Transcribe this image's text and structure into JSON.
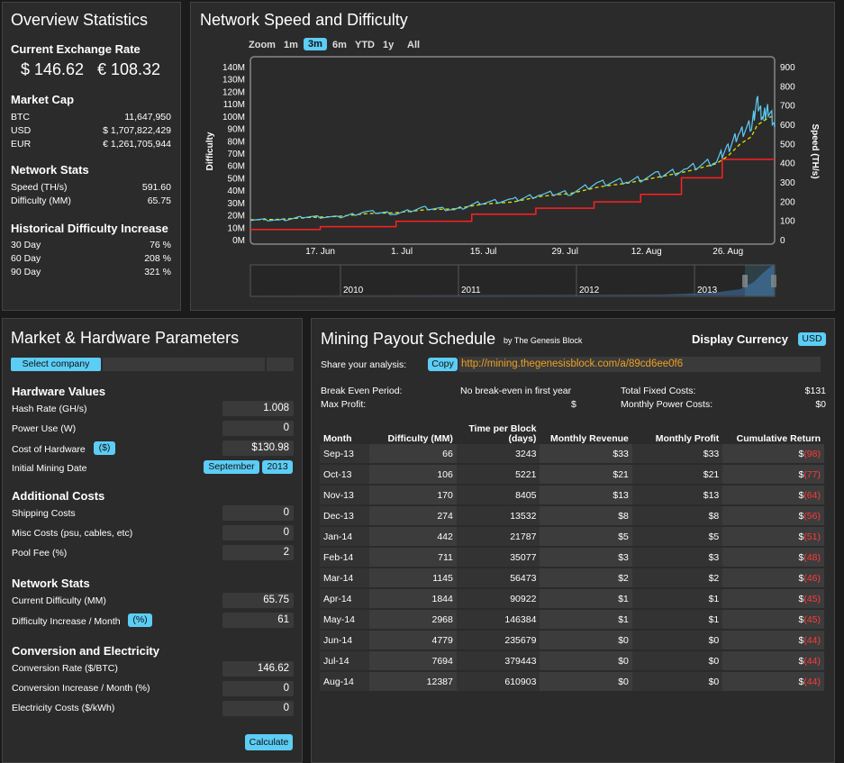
{
  "overview": {
    "title": "Overview Statistics",
    "exchange_heading": "Current Exchange Rate",
    "usd_rate": "$ 146.62",
    "eur_rate": "€ 108.32",
    "market_cap_heading": "Market Cap",
    "market_cap": [
      {
        "label": "BTC",
        "value": "11,647,950"
      },
      {
        "label": "USD",
        "value": "$ 1,707,822,429"
      },
      {
        "label": "EUR",
        "value": "€ 1,261,705,944"
      }
    ],
    "network_heading": "Network Stats",
    "network": [
      {
        "label": "Speed (TH/s)",
        "value": "591.60"
      },
      {
        "label": "Difficulty (MM)",
        "value": "65.75"
      }
    ],
    "hist_heading": "Historical Difficulty Increase",
    "hist": [
      {
        "label": "30 Day",
        "value": "76 %"
      },
      {
        "label": "60 Day",
        "value": "208 %"
      },
      {
        "label": "90 Day",
        "value": "321 %"
      }
    ]
  },
  "chart_panel": {
    "title": "Network Speed and Difficulty",
    "zoom_label": "Zoom",
    "zoom_buttons": [
      "1m",
      "3m",
      "6m",
      "YTD",
      "1y",
      "All"
    ],
    "zoom_selected": "3m",
    "navigator_years": [
      "2010",
      "2011",
      "2012",
      "2013"
    ]
  },
  "chart_data": {
    "type": "line",
    "title": "",
    "ylabel": "Difficulty",
    "y2label": "Speed (TH/s)",
    "ylim": [
      0,
      140
    ],
    "y_ticks": [
      "0M",
      "10M",
      "20M",
      "30M",
      "40M",
      "50M",
      "60M",
      "70M",
      "80M",
      "90M",
      "100M",
      "110M",
      "120M",
      "130M",
      "140M"
    ],
    "y2lim": [
      0,
      900
    ],
    "y2_ticks": [
      "0",
      "100",
      "200",
      "300",
      "400",
      "500",
      "600",
      "700",
      "800",
      "900"
    ],
    "x_ticks": [
      "17. Jun",
      "1. Jul",
      "15. Jul",
      "29. Jul",
      "12. Aug",
      "26. Aug"
    ],
    "x_tick_days": [
      12,
      26,
      40,
      54,
      68,
      82
    ],
    "xlim_days": [
      0,
      90
    ],
    "difficulty_steps": [
      {
        "day": 0,
        "value": 8.97
      },
      {
        "day": 12,
        "value": 11.19
      },
      {
        "day": 25,
        "value": 15.6
      },
      {
        "day": 38,
        "value": 21.34
      },
      {
        "day": 49,
        "value": 26.16
      },
      {
        "day": 59,
        "value": 31.26
      },
      {
        "day": 67,
        "value": 37.39
      },
      {
        "day": 74,
        "value": 50.81
      },
      {
        "day": 81,
        "value": 65.75
      },
      {
        "day": 90,
        "value": 65.75
      }
    ],
    "speed_days": [
      0,
      5,
      10,
      15,
      20,
      25,
      30,
      35,
      40,
      45,
      50,
      55,
      60,
      65,
      70,
      75,
      80,
      82,
      84,
      86,
      87,
      88,
      89,
      90
    ],
    "speed_values": [
      110,
      105,
      125,
      120,
      150,
      140,
      170,
      160,
      200,
      210,
      240,
      250,
      300,
      310,
      340,
      370,
      420,
      480,
      560,
      600,
      720,
      640,
      690,
      590
    ],
    "speed_avg_values": [
      108,
      110,
      120,
      125,
      140,
      145,
      160,
      165,
      190,
      200,
      230,
      245,
      280,
      300,
      330,
      360,
      400,
      440,
      500,
      540,
      600,
      620,
      640,
      650
    ]
  },
  "market": {
    "title": "Market & Hardware Parameters",
    "select_company": "Select company",
    "hardware_heading": "Hardware Values",
    "hash_rate_label": "Hash Rate (GH/s)",
    "hash_rate": "1.008",
    "power_label": "Power Use (W)",
    "power": "0",
    "cost_label": "Cost of Hardware",
    "cost_btn": "($)",
    "cost": "$130.98",
    "date_label": "Initial Mining Date",
    "month": "September",
    "year": "2013",
    "additional_heading": "Additional Costs",
    "shipping_label": "Shipping Costs",
    "shipping": "0",
    "misc_label": "Misc Costs (psu, cables, etc)",
    "misc": "0",
    "pool_label": "Pool Fee (%)",
    "pool": "2",
    "network_heading": "Network Stats",
    "curdiff_label": "Current Difficulty (MM)",
    "curdiff": "65.75",
    "diffinc_label": "Difficulty Increase / Month",
    "diffinc_btn": "(%)",
    "diffinc": "61",
    "conv_heading": "Conversion and Electricity",
    "convrate_label": "Conversion Rate ($/BTC)",
    "convrate": "146.62",
    "convinc_label": "Conversion Increase / Month (%)",
    "convinc": "0",
    "elec_label": "Electricity Costs ($/kWh)",
    "elec": "0",
    "calculate": "Calculate"
  },
  "payout": {
    "title": "Mining Payout Schedule",
    "by": "by The Genesis Block",
    "display_currency_label": "Display Currency",
    "currency": "USD",
    "share_label": "Share your analysis:",
    "copy": "Copy",
    "url": "http://mining.thegenesisblock.com/a/89cd6ee0f6",
    "break_even_label": "Break Even Period:",
    "break_even": "No break-even in first year",
    "max_profit_label": "Max Profit:",
    "max_profit": "$",
    "fixed_costs_label": "Total Fixed Costs:",
    "fixed_costs": "$131",
    "power_costs_label": "Monthly Power Costs:",
    "power_costs": "$0",
    "headers": [
      "Month",
      "Difficulty (MM)",
      "Time per Block (days)",
      "Monthly Revenue",
      "Monthly Profit",
      "Cumulative Return"
    ],
    "rows": [
      {
        "month": "Sep-13",
        "diff": "66",
        "time": "3243",
        "rev": "$33",
        "profit": "$33",
        "cum": "(98)"
      },
      {
        "month": "Oct-13",
        "diff": "106",
        "time": "5221",
        "rev": "$21",
        "profit": "$21",
        "cum": "(77)"
      },
      {
        "month": "Nov-13",
        "diff": "170",
        "time": "8405",
        "rev": "$13",
        "profit": "$13",
        "cum": "(64)"
      },
      {
        "month": "Dec-13",
        "diff": "274",
        "time": "13532",
        "rev": "$8",
        "profit": "$8",
        "cum": "(56)"
      },
      {
        "month": "Jan-14",
        "diff": "442",
        "time": "21787",
        "rev": "$5",
        "profit": "$5",
        "cum": "(51)"
      },
      {
        "month": "Feb-14",
        "diff": "711",
        "time": "35077",
        "rev": "$3",
        "profit": "$3",
        "cum": "(48)"
      },
      {
        "month": "Mar-14",
        "diff": "1145",
        "time": "56473",
        "rev": "$2",
        "profit": "$2",
        "cum": "(46)"
      },
      {
        "month": "Apr-14",
        "diff": "1844",
        "time": "90922",
        "rev": "$1",
        "profit": "$1",
        "cum": "(45)"
      },
      {
        "month": "May-14",
        "diff": "2968",
        "time": "146384",
        "rev": "$1",
        "profit": "$1",
        "cum": "(45)"
      },
      {
        "month": "Jun-14",
        "diff": "4779",
        "time": "235679",
        "rev": "$0",
        "profit": "$0",
        "cum": "(44)"
      },
      {
        "month": "Jul-14",
        "diff": "7694",
        "time": "379443",
        "rev": "$0",
        "profit": "$0",
        "cum": "(44)"
      },
      {
        "month": "Aug-14",
        "diff": "12387",
        "time": "610903",
        "rev": "$0",
        "profit": "$0",
        "cum": "(44)"
      }
    ],
    "cum_prefix": "$"
  },
  "colors": {
    "accent": "#5ccdf5",
    "speed": "#5ccdf5",
    "avg": "#e8e000",
    "difficulty": "#ff2020",
    "negative": "#ff3b3b"
  }
}
